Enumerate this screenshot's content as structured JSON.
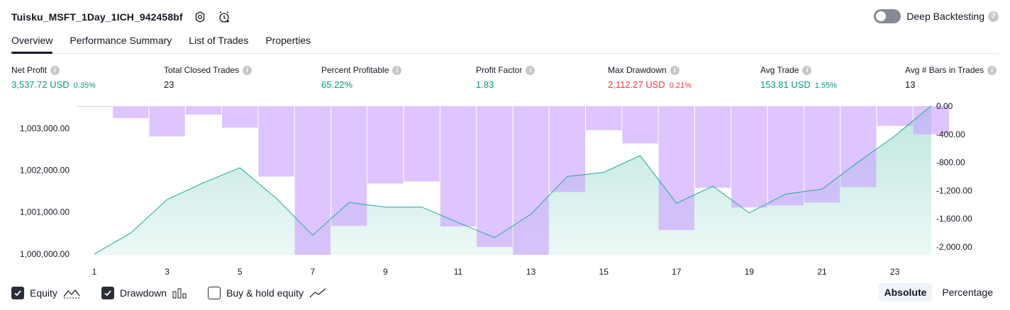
{
  "header": {
    "title": "Tuisku_MSFT_1Day_1ICH_942458bf"
  },
  "deep_backtesting": {
    "label": "Deep Backtesting",
    "enabled": false
  },
  "tabs": [
    {
      "label": "Overview",
      "active": true
    },
    {
      "label": "Performance Summary",
      "active": false
    },
    {
      "label": "List of Trades",
      "active": false
    },
    {
      "label": "Properties",
      "active": false
    }
  ],
  "metrics": [
    {
      "label": "Net Profit",
      "value": "3,537.72 USD",
      "pct": "0.35%",
      "color": "#089981"
    },
    {
      "label": "Total Closed Trades",
      "value": "23",
      "pct": "",
      "color": "#131722"
    },
    {
      "label": "Percent Profitable",
      "value": "65.22%",
      "pct": "",
      "color": "#089981"
    },
    {
      "label": "Profit Factor",
      "value": "1.83",
      "pct": "",
      "color": "#089981"
    },
    {
      "label": "Max Drawdown",
      "value": "2,112.27 USD",
      "pct": "0.21%",
      "color": "#f23645"
    },
    {
      "label": "Avg Trade",
      "value": "153.81 USD",
      "pct": "1.55%",
      "color": "#089981"
    },
    {
      "label": "Avg # Bars in Trades",
      "value": "13",
      "pct": "",
      "color": "#131722"
    }
  ],
  "chart_data": {
    "type": "area",
    "x": [
      1,
      2,
      3,
      4,
      5,
      6,
      7,
      8,
      9,
      10,
      11,
      12,
      13,
      14,
      15,
      16,
      17,
      18,
      19,
      20,
      21,
      22,
      23,
      24
    ],
    "x_tick_labels": [
      "1",
      "3",
      "5",
      "7",
      "9",
      "11",
      "13",
      "15",
      "17",
      "19",
      "21",
      "23"
    ],
    "left_axis": {
      "ticks": [
        "1,000,000.00",
        "1,001,000.00",
        "1,002,000.00",
        "1,003,000.00"
      ],
      "ylim": [
        999980,
        1003530
      ]
    },
    "right_axis": {
      "ticks": [
        "0.00",
        "-400.00",
        "-800.00",
        "-1,200.00",
        "-1,600.00",
        "-2,000.00"
      ],
      "ylim": [
        -2112.27,
        0
      ]
    },
    "series": [
      {
        "name": "Equity",
        "kind": "area",
        "color": "#22ab94",
        "values": [
          1000000,
          1000500,
          1001300,
          1001700,
          1002060,
          1001330,
          1000450,
          1001230,
          1001120,
          1001120,
          1000750,
          1000390,
          1000950,
          1001850,
          1001950,
          1002350,
          1001210,
          1001620,
          1000980,
          1001430,
          1001550,
          1002200,
          1002820,
          1003537.72
        ]
      },
      {
        "name": "Drawdown",
        "kind": "bar",
        "color": "#c9a2ff",
        "values": [
          -10,
          -170,
          -430,
          -120,
          -305,
          -1000,
          -2112.27,
          -1700,
          -1100,
          -1070,
          -1710,
          -2000,
          -2112.27,
          -1220,
          -340,
          -530,
          -1760,
          -1160,
          -1440,
          -1410,
          -1370,
          -1150,
          -280,
          -400
        ]
      }
    ],
    "legend": [
      "Equity",
      "Drawdown",
      "Buy & hold equity"
    ],
    "grid": false
  },
  "footer": {
    "equity_label": "Equity",
    "drawdown_label": "Drawdown",
    "buyhold_label": "Buy & hold equity",
    "equity_checked": true,
    "drawdown_checked": true,
    "buyhold_checked": false,
    "absolute_label": "Absolute",
    "percentage_label": "Percentage",
    "active_mode": "Absolute"
  }
}
